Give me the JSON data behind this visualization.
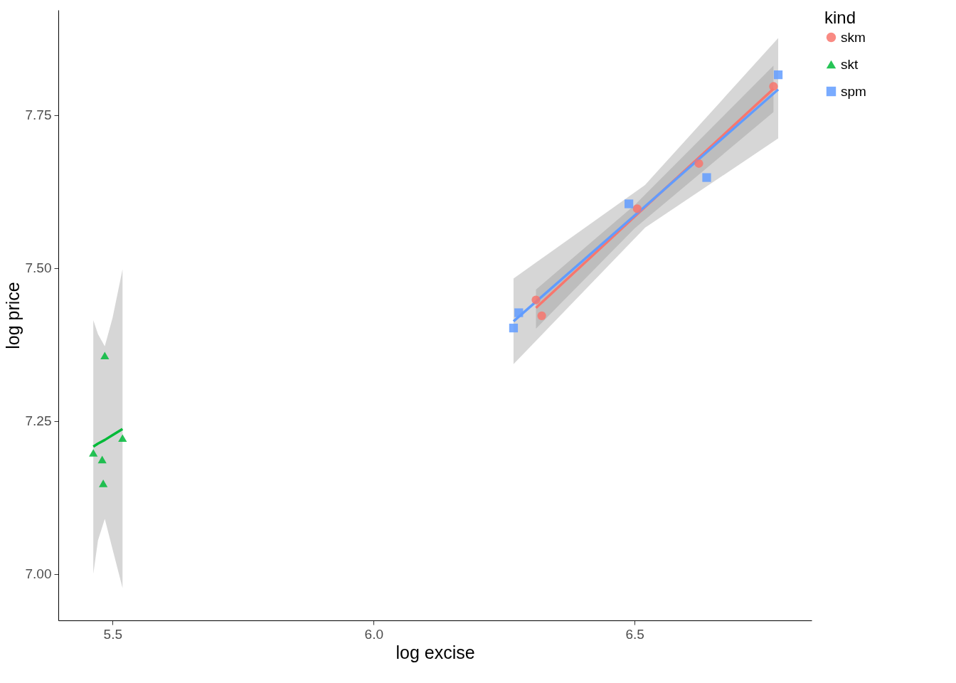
{
  "chart_data": {
    "type": "scatter",
    "xlabel": "log excise",
    "ylabel": "log price",
    "legend_title": "kind",
    "legend": "right",
    "grid": false,
    "xlim": [
      5.396,
      6.839
    ],
    "xticks": [
      5.5,
      {
        "value": 6,
        "label": "6.0"
      },
      6.5
    ],
    "ylim": [
      6.924,
      7.922
    ],
    "yticks": [
      {
        "value": 7,
        "label": "7.00"
      },
      7.25,
      {
        "value": 7.5,
        "label": "7.50"
      },
      7.75
    ],
    "series": [
      {
        "name": "skm",
        "color": "#f8766d",
        "marker": "circle",
        "x": [
          6.311,
          6.322,
          6.505,
          6.623,
          6.766
        ],
        "values": [
          7.448,
          7.422,
          7.597,
          7.671,
          7.797
        ]
      },
      {
        "name": "skt",
        "color": "#00ba38",
        "marker": "triangle",
        "x": [
          5.463,
          5.485,
          5.48,
          5.482,
          5.519
        ],
        "values": [
          7.198,
          7.357,
          7.187,
          7.148,
          7.222
        ]
      },
      {
        "name": "spm",
        "color": "#619cff",
        "marker": "square",
        "x": [
          6.268,
          6.278,
          6.489,
          6.638,
          6.775
        ],
        "values": [
          7.402,
          7.427,
          7.605,
          7.648,
          7.816
        ]
      },
      {
        "type": "line",
        "color": "#f8766d",
        "x": [
          6.311,
          6.5,
          6.766
        ],
        "values": [
          7.435,
          7.584,
          7.793
        ],
        "lower": [
          7.401,
          7.565,
          7.755
        ],
        "upper": [
          7.465,
          7.603,
          7.831
        ]
      },
      {
        "type": "line",
        "color": "#00ba38",
        "x": [
          5.463,
          5.472,
          5.485,
          5.5,
          5.519
        ],
        "values": [
          7.208,
          7.213,
          7.219,
          7.227,
          7.237
        ],
        "lower": [
          7.0,
          7.055,
          7.09,
          7.04,
          6.977
        ],
        "upper": [
          7.415,
          7.392,
          7.372,
          7.419,
          7.498
        ]
      },
      {
        "type": "line",
        "color": "#619cff",
        "x": [
          6.268,
          6.52,
          6.775
        ],
        "values": [
          7.413,
          7.601,
          7.792
        ],
        "lower": [
          7.343,
          7.566,
          7.712
        ],
        "upper": [
          7.483,
          7.636,
          7.876
        ]
      }
    ]
  }
}
